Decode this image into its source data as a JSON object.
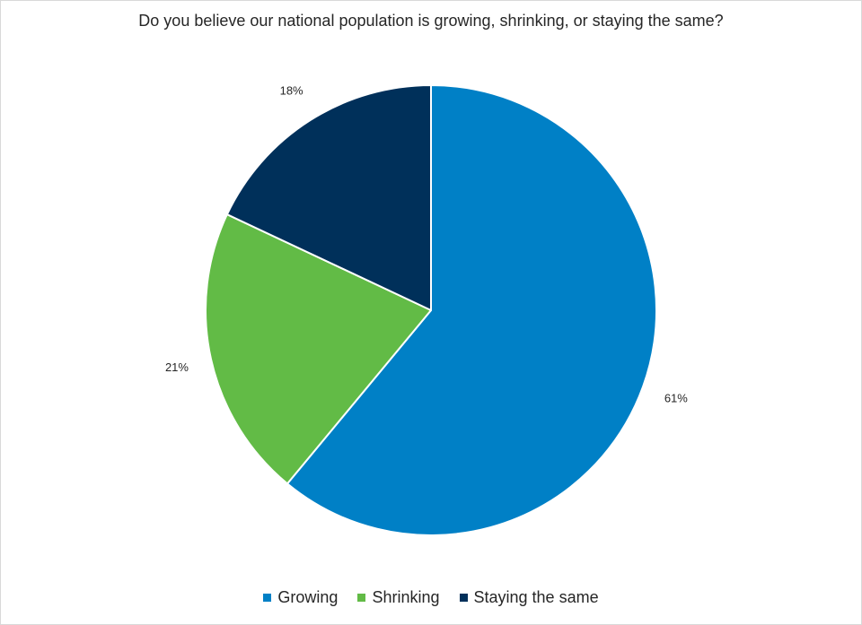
{
  "chart_data": {
    "type": "pie",
    "title": "Do you believe our national population is growing, shrinking, or staying the same?",
    "slices": [
      {
        "name": "Growing",
        "value": 61,
        "label": "61%",
        "color": "#0080c6"
      },
      {
        "name": "Shrinking",
        "value": 21,
        "label": "21%",
        "color": "#62bb46"
      },
      {
        "name": "Staying the same",
        "value": 18,
        "label": "18%",
        "color": "#00305a"
      }
    ],
    "start_angle_deg": 0,
    "direction": "clockwise",
    "legend_position": "bottom"
  }
}
